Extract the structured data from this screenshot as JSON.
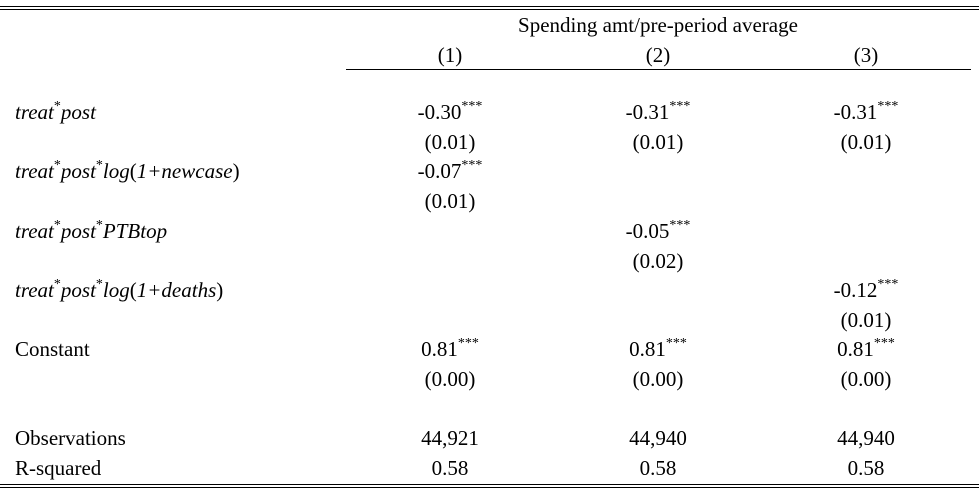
{
  "header": {
    "group_label": "Spending amt/pre-period average",
    "columns": [
      "(1)",
      "(2)",
      "(3)"
    ]
  },
  "rows": [
    {
      "label_parts": [
        {
          "text": "treat",
          "italic": true
        },
        {
          "text": "*",
          "sup": true
        },
        {
          "text": "post",
          "italic": true
        }
      ],
      "coef": [
        "-0.30",
        "-0.31",
        "-0.31"
      ],
      "stars": [
        "***",
        "***",
        "***"
      ],
      "se": [
        "(0.01)",
        "(0.01)",
        "(0.01)"
      ]
    },
    {
      "label_parts": [
        {
          "text": "treat",
          "italic": true
        },
        {
          "text": "*",
          "sup": true
        },
        {
          "text": "post",
          "italic": true
        },
        {
          "text": "*",
          "sup": true
        },
        {
          "text": "log",
          "italic": true
        },
        {
          "text": "(",
          "italic": false
        },
        {
          "text": "1+newcase",
          "italic": true
        },
        {
          "text": ")",
          "italic": false
        }
      ],
      "coef": [
        "-0.07",
        "",
        ""
      ],
      "stars": [
        "***",
        "",
        ""
      ],
      "se": [
        "(0.01)",
        "",
        ""
      ]
    },
    {
      "label_parts": [
        {
          "text": "treat",
          "italic": true
        },
        {
          "text": "*",
          "sup": true
        },
        {
          "text": "post",
          "italic": true
        },
        {
          "text": "*",
          "sup": true
        },
        {
          "text": "PTBtop",
          "italic": true
        }
      ],
      "coef": [
        "",
        "-0.05",
        ""
      ],
      "stars": [
        "",
        "***",
        ""
      ],
      "se": [
        "",
        "(0.02)",
        ""
      ]
    },
    {
      "label_parts": [
        {
          "text": "treat",
          "italic": true
        },
        {
          "text": "*",
          "sup": true
        },
        {
          "text": "post",
          "italic": true
        },
        {
          "text": "*",
          "sup": true
        },
        {
          "text": "log",
          "italic": true
        },
        {
          "text": "(",
          "italic": false
        },
        {
          "text": "1+deaths",
          "italic": true
        },
        {
          "text": ")",
          "italic": false
        }
      ],
      "coef": [
        "",
        "",
        "-0.12"
      ],
      "stars": [
        "",
        "",
        "***"
      ],
      "se": [
        "",
        "",
        "(0.01)"
      ]
    },
    {
      "label_parts": [
        {
          "text": "Constant",
          "italic": false
        }
      ],
      "coef": [
        "0.81",
        "0.81",
        "0.81"
      ],
      "stars": [
        "***",
        "***",
        "***"
      ],
      "se": [
        "(0.00)",
        "(0.00)",
        "(0.00)"
      ]
    }
  ],
  "stats": [
    {
      "label": "Observations",
      "values": [
        "44,921",
        "44,940",
        "44,940"
      ]
    },
    {
      "label": "R-squared",
      "values": [
        "0.58",
        "0.58",
        "0.58"
      ]
    }
  ]
}
